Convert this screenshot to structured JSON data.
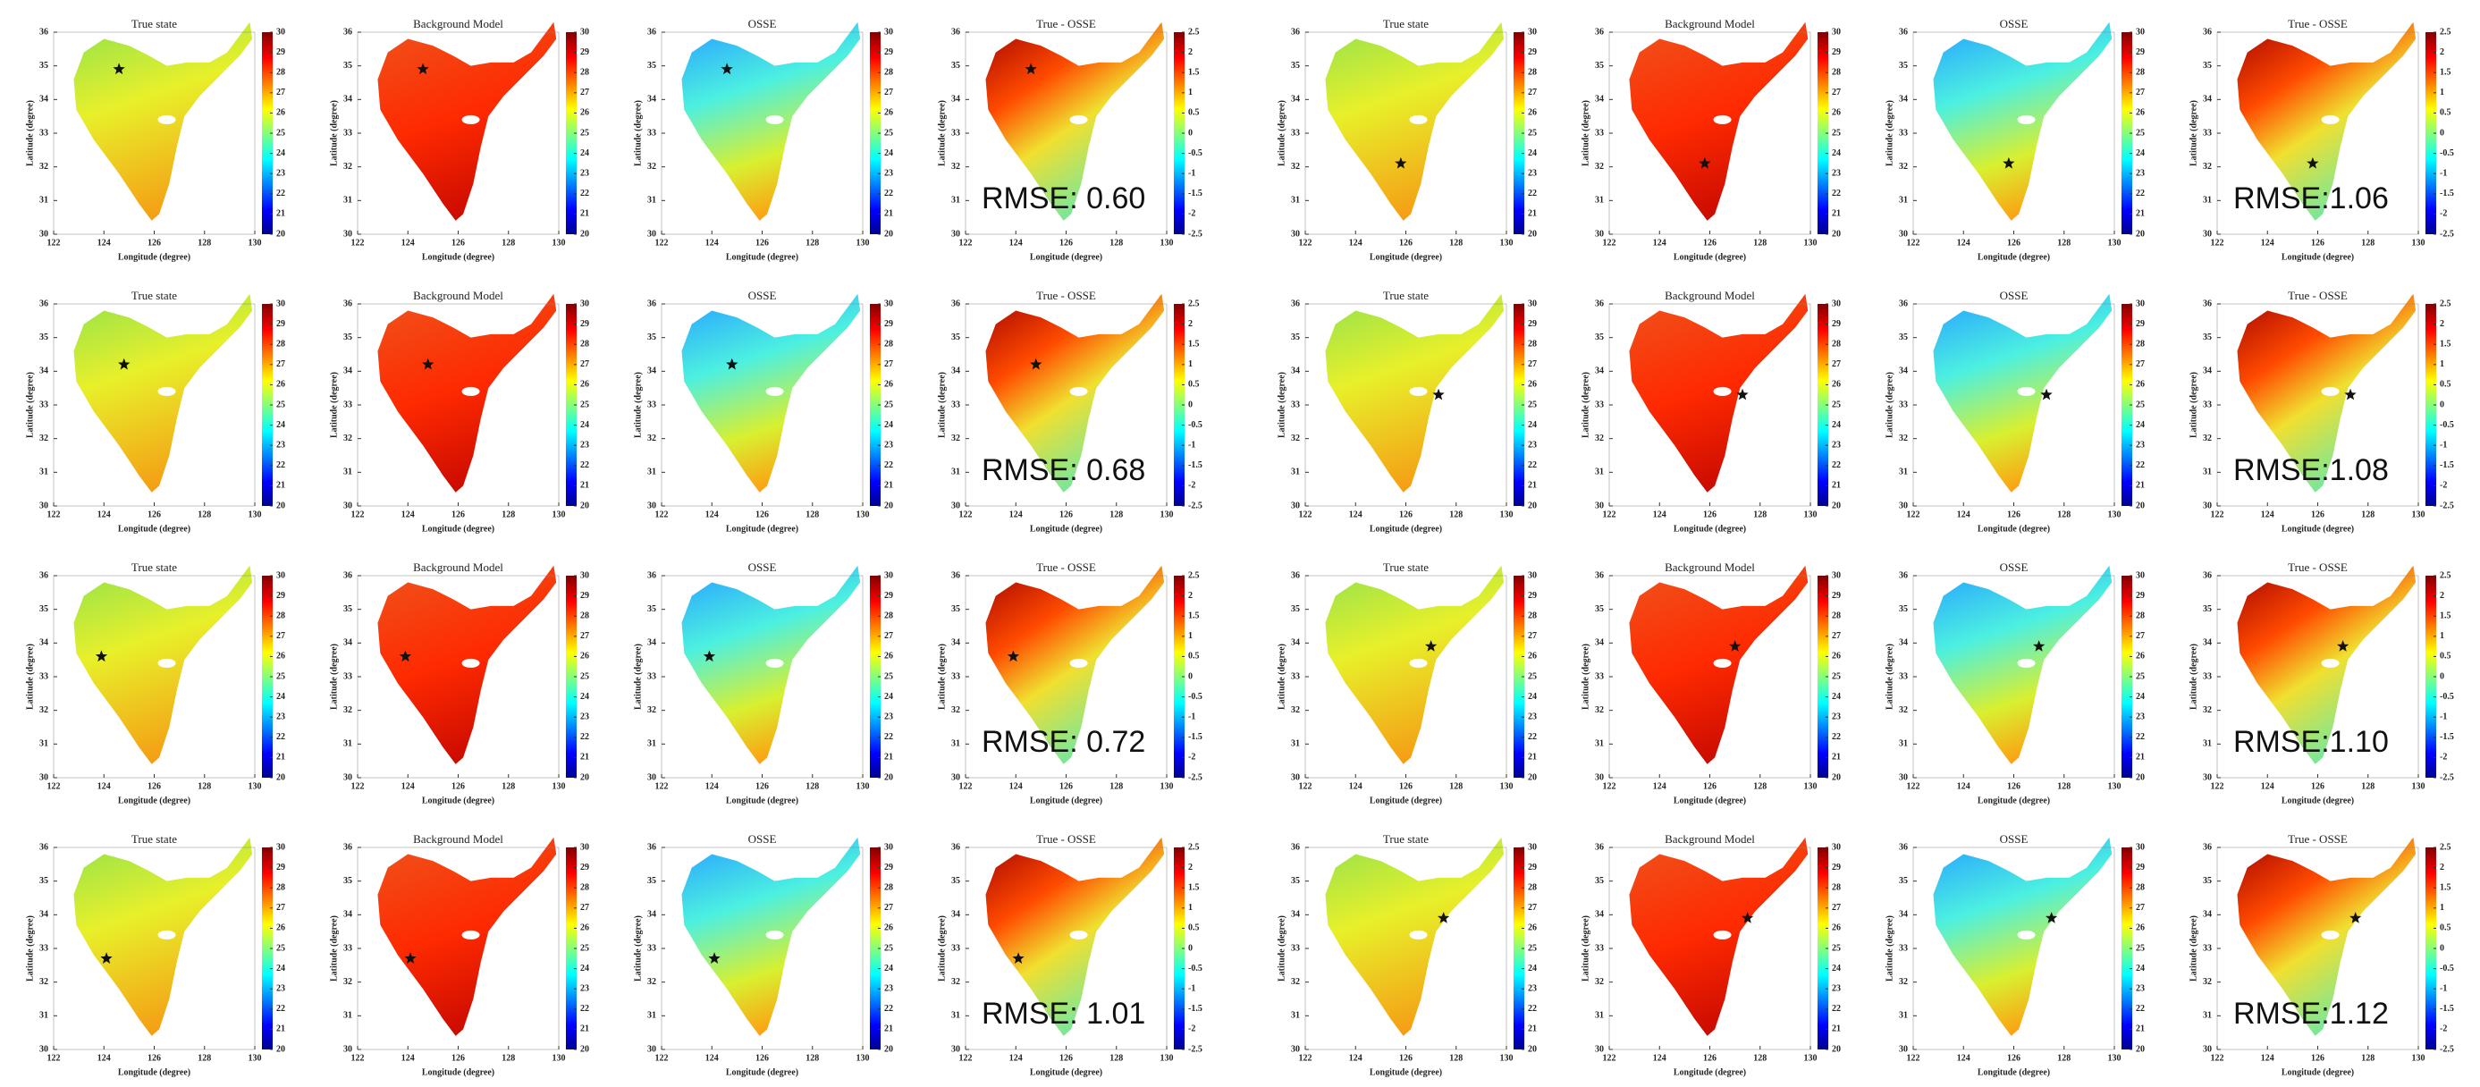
{
  "axes": {
    "xlabel": "Longitude (degree)",
    "ylabel": "Latitude (degree)",
    "xlim": [
      122,
      130
    ],
    "ylim": [
      30,
      36
    ],
    "xticks": [
      122,
      124,
      126,
      128,
      130
    ],
    "yticks": [
      30,
      31,
      32,
      33,
      34,
      35,
      36
    ]
  },
  "columns": [
    {
      "title": "True state",
      "colorbar": {
        "lim": [
          20,
          30
        ],
        "ticks": [
          20,
          21,
          22,
          23,
          24,
          25,
          26,
          27,
          28,
          29,
          30
        ]
      }
    },
    {
      "title": "Background Model",
      "colorbar": {
        "lim": [
          20,
          30
        ],
        "ticks": [
          20,
          21,
          22,
          23,
          24,
          25,
          26,
          27,
          28,
          29,
          30
        ]
      }
    },
    {
      "title": "OSSE",
      "colorbar": {
        "lim": [
          20,
          30
        ],
        "ticks": [
          20,
          21,
          22,
          23,
          24,
          25,
          26,
          27,
          28,
          29,
          30
        ]
      }
    },
    {
      "title": "True - OSSE",
      "colorbar": {
        "lim": [
          -2.5,
          2.5
        ],
        "ticks": [
          -2.5,
          -2,
          -1.5,
          -1,
          -0.5,
          0,
          0.5,
          1,
          1.5,
          2,
          2.5
        ]
      }
    }
  ],
  "groups": [
    {
      "rmse": [
        "RMSE: 0.60",
        "RMSE: 0.68",
        "RMSE: 0.72",
        "RMSE: 1.01"
      ],
      "observations": [
        {
          "lon": 124.6,
          "lat": 34.9
        },
        {
          "lon": 124.8,
          "lat": 34.2
        },
        {
          "lon": 123.9,
          "lat": 33.6
        },
        {
          "lon": 124.1,
          "lat": 32.7
        }
      ]
    },
    {
      "rmse": [
        "RMSE:1.06",
        "RMSE:1.08",
        "RMSE:1.10",
        "RMSE:1.12"
      ],
      "observations": [
        {
          "lon": 125.8,
          "lat": 32.1
        },
        {
          "lon": 127.3,
          "lat": 33.3
        },
        {
          "lon": 127.0,
          "lat": 33.9
        },
        {
          "lon": 127.5,
          "lat": 33.9
        }
      ]
    }
  ]
}
